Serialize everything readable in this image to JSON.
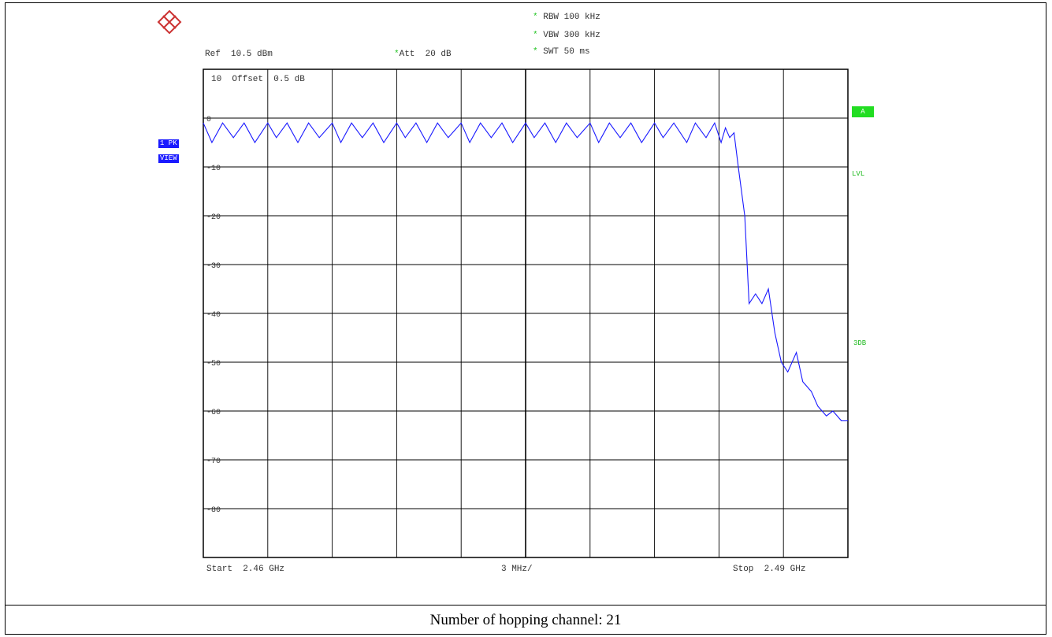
{
  "header": {
    "rbw": "RBW 100 kHz",
    "vbw": "VBW 300 kHz",
    "swt": "SWT 50 ms",
    "ref": "Ref  10.5 dBm",
    "att": "Att  20 dB",
    "scale": "10  Offset  0.5 dB",
    "star": "*"
  },
  "left_tags": {
    "trace": "1 PK",
    "view": "VIEW"
  },
  "right_tags": {
    "a": "A",
    "lvl": "LVL",
    "db3": "3DB"
  },
  "footer": {
    "start": "Start  2.46 GHz",
    "span": "3 MHz/",
    "stop": "Stop  2.49 GHz"
  },
  "caption": "Number of hopping channel: 21",
  "colors": {
    "trace": "#1a1aff",
    "grid": "#000000",
    "accent": "#22dd22"
  },
  "chart_data": {
    "type": "line",
    "title": "",
    "xlabel": "",
    "ylabel": "",
    "x_unit": "GHz",
    "xlim": [
      2.46,
      2.49
    ],
    "ylim": [
      -90,
      10
    ],
    "grid": true,
    "yticks": [
      0,
      -10,
      -20,
      -30,
      -40,
      -50,
      -60,
      -70,
      -80
    ],
    "ytick_labels": [
      "0",
      "-10",
      "-20",
      "-30",
      "-40",
      "-50",
      "-60",
      "-70",
      "-80"
    ],
    "series": [
      {
        "values_x": [
          2.46,
          2.4604,
          2.4609,
          2.4614,
          2.4619,
          2.4624,
          2.463,
          2.4634,
          2.4639,
          2.4644,
          2.4649,
          2.4654,
          2.466,
          2.4664,
          2.4669,
          2.4674,
          2.4679,
          2.4684,
          2.469,
          2.4694,
          2.4699,
          2.4704,
          2.4709,
          2.4714,
          2.472,
          2.4724,
          2.4729,
          2.4734,
          2.4739,
          2.4744,
          2.475,
          2.4754,
          2.4759,
          2.4764,
          2.4769,
          2.4774,
          2.478,
          2.4784,
          2.4789,
          2.4794,
          2.4799,
          2.4804,
          2.481,
          2.4814,
          2.4819,
          2.4825,
          2.4829,
          2.4834,
          2.4838,
          2.4841,
          2.4843,
          2.4845,
          2.4847,
          2.4849,
          2.4852,
          2.4854,
          2.4857,
          2.486,
          2.4863,
          2.4866,
          2.4869,
          2.4872,
          2.4876,
          2.4879,
          2.4883,
          2.4886,
          2.489,
          2.4893,
          2.4897,
          2.49
        ],
        "values_y": [
          -1,
          -5,
          -1,
          -4,
          -1,
          -5,
          -1,
          -4,
          -1,
          -5,
          -1,
          -4,
          -1,
          -5,
          -1,
          -4,
          -1,
          -5,
          -1,
          -4,
          -1,
          -5,
          -1,
          -4,
          -1,
          -5,
          -1,
          -4,
          -1,
          -5,
          -1,
          -4,
          -1,
          -5,
          -1,
          -4,
          -1,
          -5,
          -1,
          -4,
          -1,
          -5,
          -1,
          -4,
          -1,
          -5,
          -1,
          -4,
          -1,
          -5,
          -2,
          -4,
          -3,
          -10,
          -20,
          -38,
          -36,
          -38,
          -35,
          -44,
          -50,
          -52,
          -48,
          -54,
          -56,
          -59,
          -61,
          -60,
          -62,
          -62
        ]
      }
    ]
  }
}
